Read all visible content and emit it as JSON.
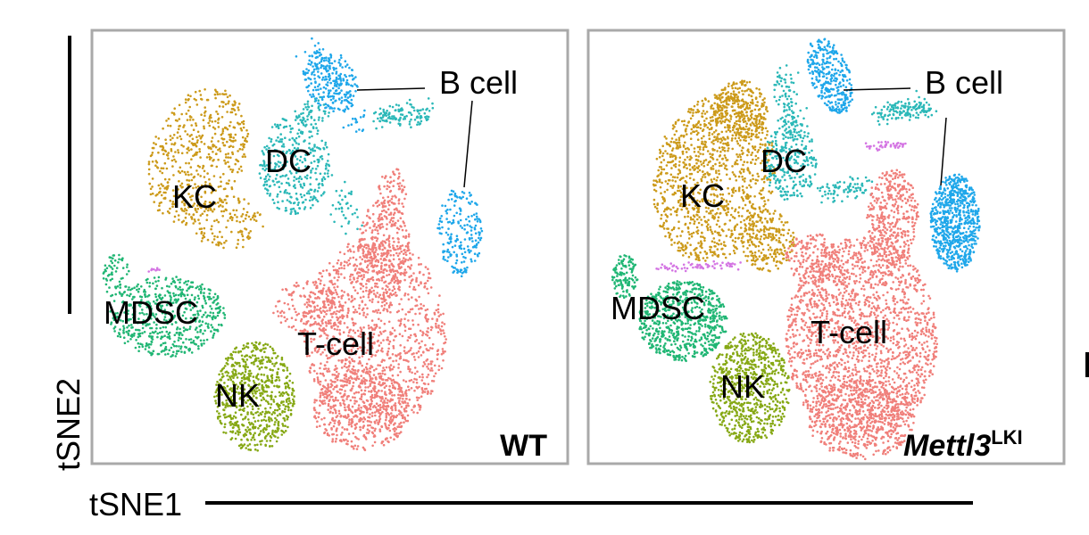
{
  "chart_data": {
    "type": "scatter",
    "xlabel": "tSNE1",
    "ylabel": "tSNE2",
    "panels": [
      {
        "condition": "WT",
        "condition_sup": ""
      },
      {
        "condition": "Mettl3",
        "condition_sup": "LKI"
      }
    ],
    "clusters": [
      {
        "name": "B cell",
        "color": "#1fa7ea"
      },
      {
        "name": "DC",
        "color": "#2bb8b8"
      },
      {
        "name": "KC",
        "color": "#cc9a1a"
      },
      {
        "name": "MDSC",
        "color": "#20b674"
      },
      {
        "name": "NK",
        "color": "#86a814"
      },
      {
        "name": "T-cell",
        "color": "#f07f7a"
      },
      {
        "name": "",
        "color": "#d475e3"
      }
    ]
  }
}
